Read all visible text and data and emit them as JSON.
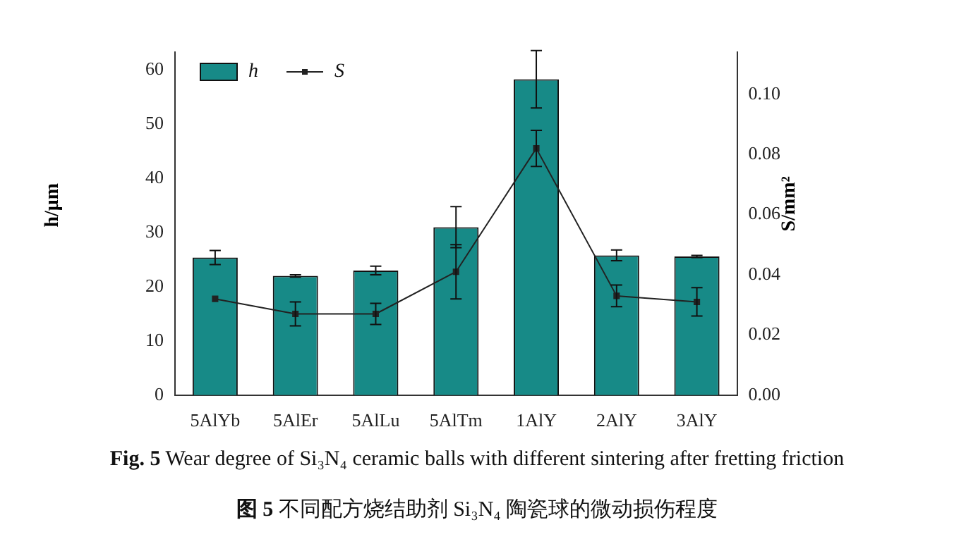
{
  "chart_data": {
    "type": "bar",
    "categories": [
      "5AlYb",
      "5AlEr",
      "5AlLu",
      "5AlTm",
      "1AlY",
      "2AlY",
      "3AlY"
    ],
    "ylabel": "h/μm",
    "y2label": "S/mm²",
    "series": [
      {
        "name": "h",
        "color": "#178a87",
        "values": [
          25.4,
          22,
          23,
          31,
          58.3,
          25.8,
          25.6
        ],
        "errors": [
          1.3,
          0.2,
          0.8,
          3.8,
          5.3,
          1,
          0.2
        ]
      },
      {
        "name": "S",
        "type": "line",
        "axis": "y2",
        "color": "#222222",
        "values": [
          0.032,
          0.027,
          0.027,
          0.041,
          0.082,
          0.033,
          0.031
        ],
        "errors": [
          null,
          0.004,
          0.0035,
          0.009,
          0.006,
          0.0036,
          0.0047
        ]
      }
    ],
    "ylim": [
      0,
      63.3
    ],
    "yticks": [
      0,
      10,
      20,
      30,
      40,
      50,
      60
    ],
    "y2lim": [
      0,
      0.114
    ],
    "y2ticks": [
      {
        "value": 0,
        "label": "0.00"
      },
      {
        "value": 0.02,
        "label": "0.02"
      },
      {
        "value": 0.04,
        "label": "0.04"
      },
      {
        "value": 0.06,
        "label": "0.06"
      },
      {
        "value": 0.08,
        "label": "0.08"
      },
      {
        "value": 0.1,
        "label": "0.10"
      }
    ],
    "legend": "top left",
    "marker": "square",
    "line_style": "solid",
    "grid": false,
    "annotations": [
      "Fig. 5 Wear degree of Si₃N₄ ceramic balls with different sintering after fretting friction",
      "图 5 不同配方烧结助剂 Si₃N₄ 陶瓷球的微动损伤程度"
    ]
  }
}
